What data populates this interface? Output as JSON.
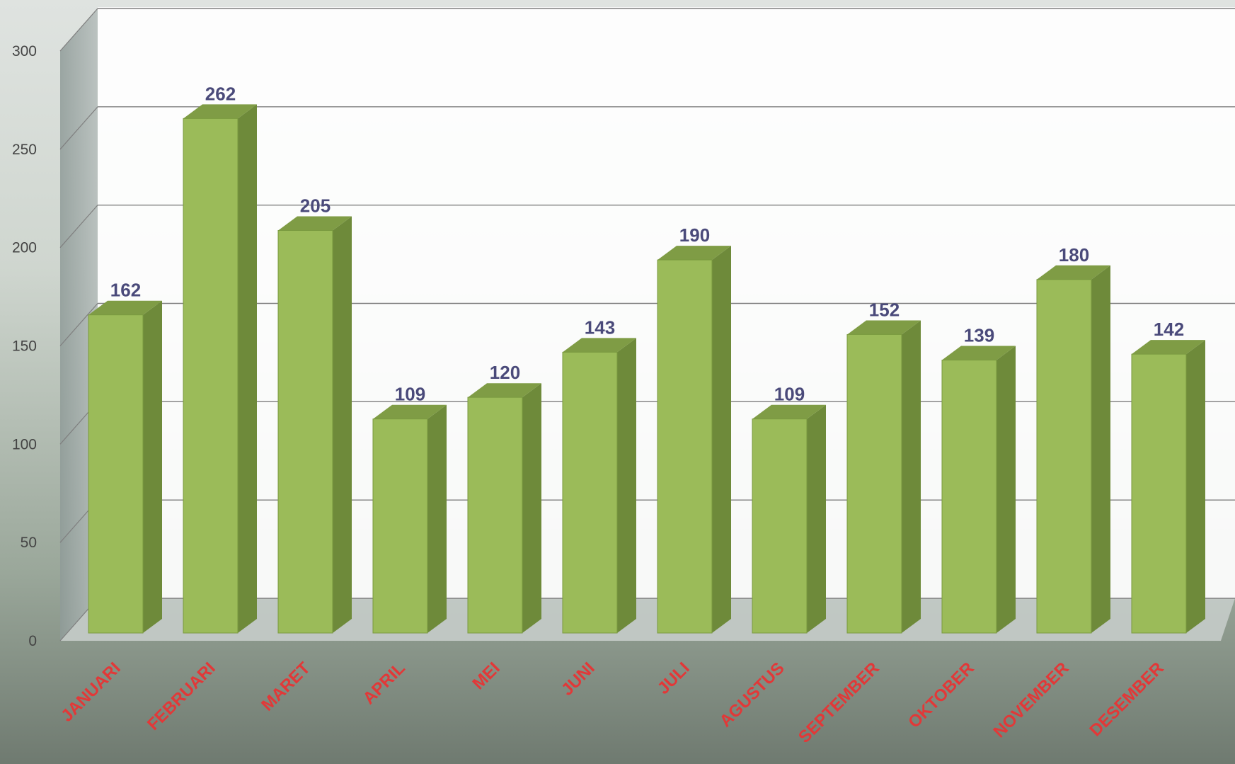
{
  "chart_data": {
    "type": "bar",
    "title": "",
    "xlabel": "",
    "ylabel": "",
    "categories": [
      "JANUARI",
      "FEBRUARI",
      "MARET",
      "APRIL",
      "MEI",
      "JUNI",
      "JULI",
      "AGUSTUS",
      "SEPTEMBER",
      "OKTOBER",
      "NOVEMBER",
      "DESEMBER"
    ],
    "values": [
      162,
      262,
      205,
      109,
      120,
      143,
      190,
      109,
      152,
      139,
      180,
      142
    ],
    "ylim": [
      0,
      300
    ],
    "yticks": [
      0,
      50,
      100,
      150,
      200,
      250,
      300
    ],
    "grid": true,
    "style": "3d-column",
    "colors": {
      "bar_front": "#9bbb59",
      "bar_side": "#6e8a3a",
      "bar_top": "#7f9c45",
      "value_label": "#4a4a7a",
      "category_label": "#e23838"
    }
  }
}
